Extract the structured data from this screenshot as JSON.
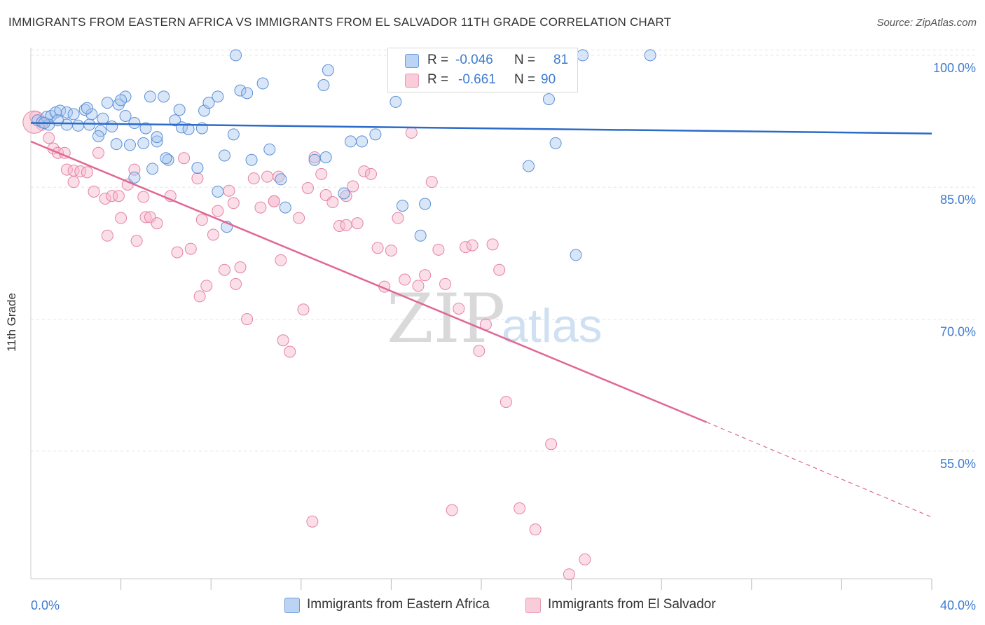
{
  "title": "IMMIGRANTS FROM EASTERN AFRICA VS IMMIGRANTS FROM EL SALVADOR 11TH GRADE CORRELATION CHART",
  "source": "Source: ZipAtlas.com",
  "watermark": {
    "zip": "ZIP",
    "atlas": "atlas"
  },
  "legend_top": {
    "r_label": "R =",
    "n_label": "N =",
    "rows": [
      {
        "r": "-0.046",
        "n": "81"
      },
      {
        "r": "-0.661",
        "n": "90"
      }
    ]
  },
  "colors": {
    "blue_fill": "#a9c8ef",
    "blue_stroke": "#5b8fd6",
    "blue_line": "#2b6bc9",
    "pink_fill": "#f6b9cc",
    "pink_stroke": "#e582a3",
    "pink_line": "#e06896",
    "axis_text": "#3f7bd0",
    "grid": "#e5e5e5"
  },
  "chart_data": {
    "type": "scatter",
    "title": "IMMIGRANTS FROM EASTERN AFRICA VS IMMIGRANTS FROM EL SALVADOR 11TH GRADE CORRELATION CHART",
    "xlabel": "",
    "ylabel": "11th Grade",
    "xlim": [
      0,
      40
    ],
    "ylim": [
      40.5,
      101.5
    ],
    "x_tick_labels": [
      "0.0%",
      "40.0%"
    ],
    "y_ticks": [
      55,
      70,
      85,
      100
    ],
    "y_tick_labels": [
      "55.0%",
      "70.0%",
      "85.0%",
      "100.0%"
    ],
    "grid": true,
    "legend_position": "bottom",
    "series": [
      {
        "name": "Immigrants from Eastern Africa",
        "color": "#5b8fd6",
        "trend": {
          "x": [
            0,
            40
          ],
          "y": [
            92.3,
            91.1
          ]
        },
        "points": [
          [
            0.3,
            92.6
          ],
          [
            0.5,
            92.4
          ],
          [
            0.7,
            93.0
          ],
          [
            0.9,
            93.1
          ],
          [
            1.1,
            93.5
          ],
          [
            1.3,
            93.7
          ],
          [
            1.6,
            93.5
          ],
          [
            1.9,
            93.3
          ],
          [
            2.4,
            93.8
          ],
          [
            2.7,
            93.3
          ],
          [
            3.2,
            92.8
          ],
          [
            3.4,
            94.6
          ],
          [
            3.9,
            94.4
          ],
          [
            4.2,
            95.3
          ],
          [
            5.3,
            95.3
          ],
          [
            5.9,
            95.3
          ],
          [
            0.8,
            92.1
          ],
          [
            1.6,
            92.1
          ],
          [
            2.1,
            92.0
          ],
          [
            2.6,
            92.1
          ],
          [
            3.1,
            91.4
          ],
          [
            3.6,
            91.9
          ],
          [
            4.6,
            92.3
          ],
          [
            5.1,
            91.7
          ],
          [
            6.4,
            92.6
          ],
          [
            6.7,
            91.8
          ],
          [
            7.0,
            91.6
          ],
          [
            7.6,
            91.7
          ],
          [
            3.0,
            90.8
          ],
          [
            3.8,
            89.9
          ],
          [
            4.4,
            89.8
          ],
          [
            5.0,
            90.0
          ],
          [
            5.6,
            90.2
          ],
          [
            6.1,
            88.1
          ],
          [
            5.4,
            87.1
          ],
          [
            6.0,
            88.3
          ],
          [
            7.4,
            87.2
          ],
          [
            8.6,
            88.6
          ],
          [
            9.8,
            88.1
          ],
          [
            10.6,
            89.3
          ],
          [
            11.1,
            85.9
          ],
          [
            11.3,
            82.7
          ],
          [
            12.6,
            88.1
          ],
          [
            13.1,
            88.4
          ],
          [
            14.2,
            90.2
          ],
          [
            14.7,
            90.2
          ],
          [
            15.3,
            91.0
          ],
          [
            4.6,
            86.1
          ],
          [
            8.3,
            84.5
          ],
          [
            13.9,
            84.3
          ],
          [
            16.5,
            82.9
          ],
          [
            17.5,
            83.1
          ],
          [
            17.3,
            79.5
          ],
          [
            8.7,
            80.5
          ],
          [
            7.7,
            93.7
          ],
          [
            8.3,
            95.3
          ],
          [
            7.9,
            94.6
          ],
          [
            6.6,
            93.8
          ],
          [
            9.3,
            96.0
          ],
          [
            9.6,
            95.7
          ],
          [
            10.3,
            96.8
          ],
          [
            13.0,
            96.6
          ],
          [
            13.2,
            98.3
          ],
          [
            16.2,
            94.7
          ],
          [
            17.0,
            100.0
          ],
          [
            18.5,
            100.0
          ],
          [
            21.3,
            100.0
          ],
          [
            24.5,
            100.0
          ],
          [
            27.5,
            100.0
          ],
          [
            9.1,
            100.0
          ],
          [
            23.0,
            95.0
          ],
          [
            22.1,
            87.4
          ],
          [
            23.3,
            90.0
          ],
          [
            24.2,
            77.3
          ],
          [
            4.2,
            93.1
          ],
          [
            2.5,
            94.0
          ],
          [
            1.2,
            92.6
          ],
          [
            4.0,
            94.9
          ],
          [
            9.0,
            91.0
          ],
          [
            5.6,
            90.7
          ],
          [
            0.6,
            92.3
          ]
        ]
      },
      {
        "name": "Immigrants from El Salvador",
        "color": "#e582a3",
        "trend": {
          "x": [
            0,
            30
          ],
          "y": [
            90.2,
            58.3
          ]
        },
        "trend_dashed": {
          "x": [
            30,
            40
          ],
          "y": [
            58.3,
            47.5
          ]
        },
        "points": [
          [
            0.2,
            93.0
          ],
          [
            0.5,
            92.1
          ],
          [
            0.8,
            90.6
          ],
          [
            1.0,
            89.4
          ],
          [
            1.2,
            88.9
          ],
          [
            1.5,
            88.9
          ],
          [
            1.6,
            87.0
          ],
          [
            1.9,
            86.9
          ],
          [
            2.2,
            86.8
          ],
          [
            2.5,
            86.7
          ],
          [
            1.9,
            85.6
          ],
          [
            2.8,
            84.5
          ],
          [
            3.0,
            88.9
          ],
          [
            3.3,
            83.7
          ],
          [
            3.6,
            84.0
          ],
          [
            3.9,
            84.0
          ],
          [
            4.3,
            85.3
          ],
          [
            4.6,
            87.0
          ],
          [
            5.0,
            83.9
          ],
          [
            3.4,
            79.5
          ],
          [
            4.0,
            81.5
          ],
          [
            4.7,
            78.9
          ],
          [
            5.1,
            81.6
          ],
          [
            5.3,
            81.6
          ],
          [
            5.6,
            80.9
          ],
          [
            6.2,
            84.0
          ],
          [
            6.5,
            77.6
          ],
          [
            6.8,
            88.3
          ],
          [
            7.1,
            78.0
          ],
          [
            7.4,
            86.0
          ],
          [
            7.6,
            81.3
          ],
          [
            7.8,
            73.8
          ],
          [
            7.5,
            72.6
          ],
          [
            8.1,
            79.6
          ],
          [
            8.3,
            82.3
          ],
          [
            8.6,
            75.6
          ],
          [
            8.8,
            84.6
          ],
          [
            9.0,
            83.2
          ],
          [
            9.3,
            75.9
          ],
          [
            9.6,
            70.0
          ],
          [
            9.9,
            86.0
          ],
          [
            10.2,
            82.7
          ],
          [
            10.5,
            86.2
          ],
          [
            10.8,
            83.4
          ],
          [
            11.0,
            86.2
          ],
          [
            11.2,
            67.6
          ],
          [
            11.5,
            66.3
          ],
          [
            11.9,
            81.5
          ],
          [
            12.1,
            71.1
          ],
          [
            12.3,
            84.9
          ],
          [
            12.6,
            88.4
          ],
          [
            12.9,
            86.5
          ],
          [
            13.1,
            84.1
          ],
          [
            13.4,
            83.3
          ],
          [
            13.7,
            80.6
          ],
          [
            14.0,
            80.7
          ],
          [
            14.3,
            85.1
          ],
          [
            14.5,
            80.9
          ],
          [
            14.8,
            86.8
          ],
          [
            15.1,
            86.5
          ],
          [
            15.4,
            78.1
          ],
          [
            15.7,
            73.7
          ],
          [
            16.0,
            77.8
          ],
          [
            16.3,
            81.5
          ],
          [
            16.6,
            74.5
          ],
          [
            16.9,
            91.2
          ],
          [
            17.2,
            73.8
          ],
          [
            17.5,
            75.0
          ],
          [
            17.8,
            85.6
          ],
          [
            18.1,
            77.9
          ],
          [
            18.4,
            74.0
          ],
          [
            18.7,
            48.3
          ],
          [
            19.0,
            71.2
          ],
          [
            19.3,
            78.2
          ],
          [
            19.6,
            78.4
          ],
          [
            19.9,
            66.4
          ],
          [
            20.2,
            69.4
          ],
          [
            20.5,
            78.5
          ],
          [
            20.8,
            75.6
          ],
          [
            21.1,
            60.6
          ],
          [
            21.7,
            48.5
          ],
          [
            22.4,
            46.1
          ],
          [
            23.1,
            55.8
          ],
          [
            23.9,
            41.0
          ],
          [
            24.6,
            42.7
          ],
          [
            12.5,
            47.0
          ],
          [
            10.8,
            83.4
          ],
          [
            9.1,
            74.0
          ],
          [
            11.1,
            76.7
          ],
          [
            14.0,
            84.0
          ]
        ]
      }
    ]
  }
}
